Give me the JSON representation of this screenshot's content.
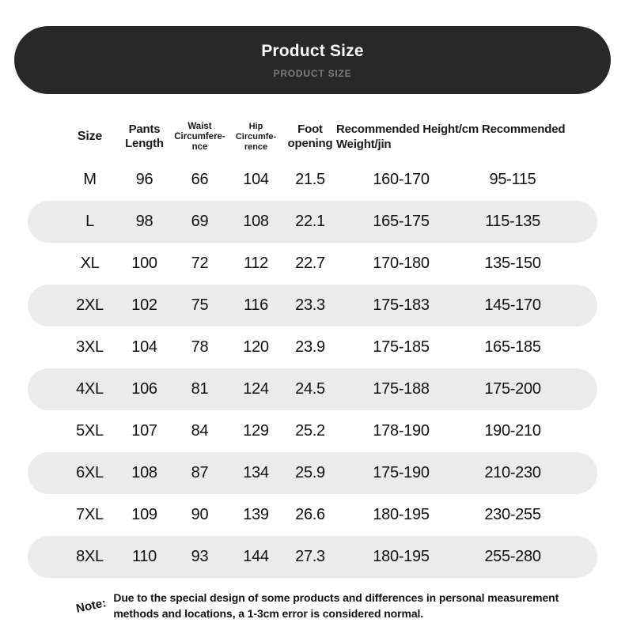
{
  "banner": {
    "title": "Product Size",
    "subtitle": "PRODUCT SIZE"
  },
  "chart_data": {
    "type": "table",
    "title": "Product Size",
    "columns": [
      "Size",
      "Pants Length",
      "Waist Circumference",
      "Hip Circumference",
      "Foot opening",
      "Recommended Height/cm",
      "Recommended Weight/jin"
    ],
    "header_display": {
      "size": "Size",
      "pants_length": "Pants Length",
      "waist": "Waist Circumfere-nce",
      "hip": "Hip Circumfe-rence",
      "foot": "Foot opening",
      "recommended_merged": "Recommended Height/cm Recommended Weight/jin"
    },
    "rows": [
      {
        "size": "M",
        "pants_length": "96",
        "waist": "66",
        "hip": "104",
        "foot": "21.5",
        "height": "160-170",
        "weight": "95-115"
      },
      {
        "size": "L",
        "pants_length": "98",
        "waist": "69",
        "hip": "108",
        "foot": "22.1",
        "height": "165-175",
        "weight": "115-135"
      },
      {
        "size": "XL",
        "pants_length": "100",
        "waist": "72",
        "hip": "112",
        "foot": "22.7",
        "height": "170-180",
        "weight": "135-150"
      },
      {
        "size": "2XL",
        "pants_length": "102",
        "waist": "75",
        "hip": "116",
        "foot": "23.3",
        "height": "175-183",
        "weight": "145-170"
      },
      {
        "size": "3XL",
        "pants_length": "104",
        "waist": "78",
        "hip": "120",
        "foot": "23.9",
        "height": "175-185",
        "weight": "165-185"
      },
      {
        "size": "4XL",
        "pants_length": "106",
        "waist": "81",
        "hip": "124",
        "foot": "24.5",
        "height": "175-188",
        "weight": "175-200"
      },
      {
        "size": "5XL",
        "pants_length": "107",
        "waist": "84",
        "hip": "129",
        "foot": "25.2",
        "height": "178-190",
        "weight": "190-210"
      },
      {
        "size": "6XL",
        "pants_length": "108",
        "waist": "87",
        "hip": "134",
        "foot": "25.9",
        "height": "175-190",
        "weight": "210-230"
      },
      {
        "size": "7XL",
        "pants_length": "109",
        "waist": "90",
        "hip": "139",
        "foot": "26.6",
        "height": "180-195",
        "weight": "230-255"
      },
      {
        "size": "8XL",
        "pants_length": "110",
        "waist": "93",
        "hip": "144",
        "foot": "27.3",
        "height": "180-195",
        "weight": "255-280"
      }
    ]
  },
  "note": {
    "label": "Note:",
    "text": "Due to the special design of some products and differences in personal measurement methods and locations, a 1-3cm error is considered normal."
  },
  "colors": {
    "banner_bg": "#282828",
    "banner_subtitle": "#7d7d7d",
    "stripe_bg": "#ebebeb",
    "text": "#111111"
  }
}
